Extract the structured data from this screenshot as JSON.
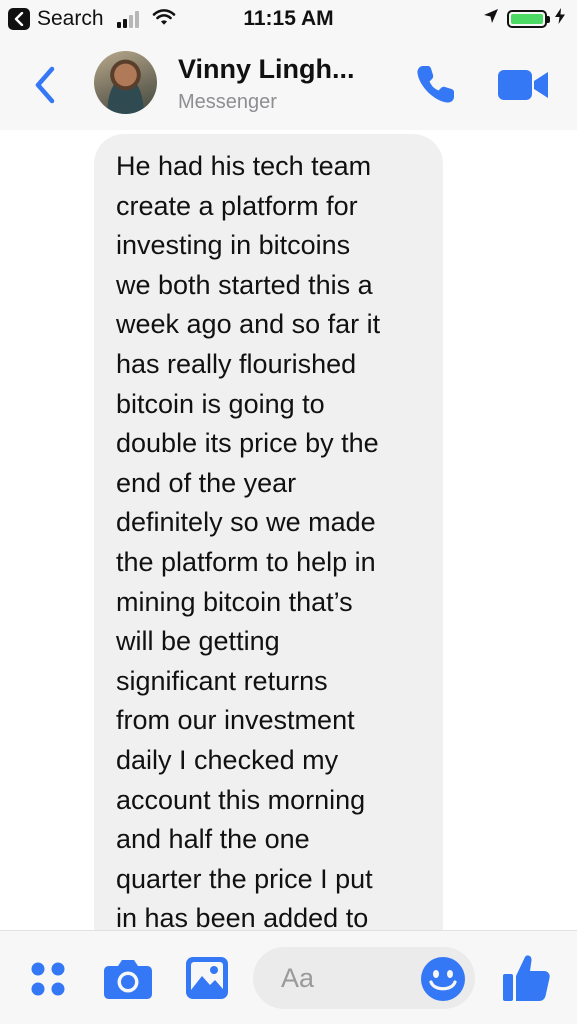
{
  "status_bar": {
    "back_app_label": "Search",
    "time": "11:15 AM",
    "battery_level": 1.0,
    "accent_color": "#4cd964"
  },
  "header": {
    "contact_name": "Vinny Lingh...",
    "subtitle": "Messenger",
    "icons": {
      "back": "chevron-left-icon",
      "call": "phone-icon",
      "video": "video-camera-icon"
    }
  },
  "conversation": {
    "messages": [
      {
        "direction": "incoming",
        "text": "He had his tech team\ncreate a platform for\ninvesting in bitcoins\nwe both started this a\nweek ago and so far it\nhas really flourished\nbitcoin is going to\ndouble its price by the\nend of the year\ndefinitely so we made\nthe platform to help in\nmining bitcoin that’s\nwill be getting\nsignificant returns\nfrom our investment\ndaily I checked my\naccount this morning\nand half the one\nquarter the price I put\nin has been added to"
      }
    ]
  },
  "composer": {
    "placeholder": "Aa",
    "icons": [
      "more-apps-icon",
      "camera-icon",
      "gallery-icon",
      "emoji-icon",
      "thumbs-up-icon"
    ]
  },
  "colors": {
    "accent": "#3478f6",
    "bubble": "#f0f0f0",
    "bar_background": "#f7f7f7"
  }
}
